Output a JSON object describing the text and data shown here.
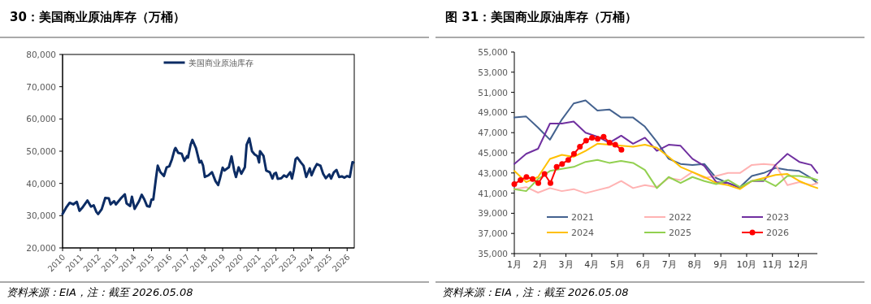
{
  "chart_data": [
    {
      "type": "line",
      "title": "30：美国商业原油库存（万桶）",
      "xlim": [
        2010,
        2026.4
      ],
      "xticks": [
        2010,
        2011,
        2012,
        2013,
        2014,
        2015,
        2016,
        2017,
        2018,
        2019,
        2020,
        2021,
        2022,
        2023,
        2024,
        2025,
        2026
      ],
      "ylim": [
        20000,
        80000
      ],
      "yticks": [
        {
          "value": 20000,
          "label": "20,000"
        },
        {
          "value": 30000,
          "label": "30,000"
        },
        {
          "value": 40000,
          "label": "40,000"
        },
        {
          "value": 50000,
          "label": "50,000"
        },
        {
          "value": 60000,
          "label": "60,000"
        },
        {
          "value": 70000,
          "label": "70,000"
        },
        {
          "value": 80000,
          "label": "80,000"
        }
      ],
      "legend": "top",
      "annotations": [
        "资料来源：EIA，注：截至 2026.05.08"
      ],
      "series": [
        {
          "name": "美国商业原油库存",
          "color": "#0c2c64",
          "x": [
            2010.0,
            2010.2,
            2010.4,
            2010.6,
            2010.8,
            2010.95,
            2011.1,
            2011.4,
            2011.6,
            2011.75,
            2011.9,
            2012.0,
            2012.2,
            2012.4,
            2012.6,
            2012.7,
            2012.9,
            2013.0,
            2013.3,
            2013.5,
            2013.6,
            2013.8,
            2013.9,
            2014.05,
            2014.3,
            2014.45,
            2014.6,
            2014.75,
            2014.9,
            2015.0,
            2015.1,
            2015.25,
            2015.35,
            2015.5,
            2015.7,
            2015.85,
            2016.0,
            2016.15,
            2016.3,
            2016.35,
            2016.5,
            2016.7,
            2016.85,
            2017.0,
            2017.05,
            2017.2,
            2017.3,
            2017.5,
            2017.7,
            2017.8,
            2017.9,
            2018.0,
            2018.2,
            2018.4,
            2018.6,
            2018.75,
            2018.85,
            2019.0,
            2019.1,
            2019.35,
            2019.5,
            2019.65,
            2019.75,
            2019.9,
            2020.05,
            2020.25,
            2020.35,
            2020.5,
            2020.65,
            2020.8,
            2020.95,
            2021.05,
            2021.1,
            2021.3,
            2021.45,
            2021.65,
            2021.8,
            2021.9,
            2022.0,
            2022.1,
            2022.3,
            2022.45,
            2022.6,
            2022.8,
            2022.9,
            2023.0,
            2023.1,
            2023.2,
            2023.4,
            2023.55,
            2023.7,
            2023.9,
            2024.0,
            2024.15,
            2024.3,
            2024.5,
            2024.65,
            2024.8,
            2025.0,
            2025.1,
            2025.25,
            2025.4,
            2025.55,
            2025.7,
            2025.85,
            2026.0,
            2026.15,
            2026.3,
            2026.35
          ],
          "values": [
            30500,
            32500,
            34000,
            33500,
            34300,
            31500,
            32400,
            34700,
            32800,
            33200,
            31200,
            30500,
            32000,
            35500,
            35400,
            33500,
            34500,
            33500,
            35500,
            36600,
            33800,
            33000,
            35900,
            32100,
            34500,
            36500,
            35000,
            33000,
            32800,
            35000,
            35000,
            41500,
            45500,
            43500,
            42300,
            45000,
            45300,
            47500,
            50500,
            51000,
            49500,
            49200,
            47000,
            48500,
            48000,
            52000,
            53500,
            51000,
            46500,
            47000,
            45500,
            42000,
            42500,
            43500,
            40700,
            39500,
            41500,
            44900,
            44000,
            45000,
            48400,
            44000,
            42000,
            45000,
            43000,
            45000,
            52000,
            54000,
            50000,
            49000,
            48500,
            46500,
            50000,
            48500,
            44000,
            43500,
            41500,
            43000,
            43300,
            41400,
            41600,
            42500,
            42000,
            43500,
            41500,
            44000,
            47500,
            48000,
            46500,
            45500,
            42000,
            44700,
            42500,
            44500,
            46000,
            45500,
            43000,
            41600,
            42800,
            41500,
            43400,
            44200,
            42000,
            42200,
            41800,
            42300,
            42000,
            46600,
            46500
          ]
        }
      ]
    },
    {
      "type": "line",
      "title": "图 31：美国商业原油库存（万桶）",
      "x": [
        1,
        1.46,
        1.92,
        2.38,
        2.84,
        3.3,
        3.76,
        4.22,
        4.68,
        5.14,
        5.6,
        6.06,
        6.52,
        6.98,
        7.44,
        7.9,
        8.36,
        8.82,
        9.28,
        9.74,
        10.2,
        10.66,
        11.12,
        11.58,
        12.04,
        12.5,
        12.74
      ],
      "xlim": [
        1,
        12.74
      ],
      "xticks": [
        {
          "value": 1,
          "label": "1月"
        },
        {
          "value": 2,
          "label": "2月"
        },
        {
          "value": 3,
          "label": "3月"
        },
        {
          "value": 4,
          "label": "4月"
        },
        {
          "value": 5,
          "label": "5月"
        },
        {
          "value": 6,
          "label": "6月"
        },
        {
          "value": 7,
          "label": "7月"
        },
        {
          "value": 8,
          "label": "8月"
        },
        {
          "value": 9,
          "label": "9月"
        },
        {
          "value": 10,
          "label": "10月"
        },
        {
          "value": 11,
          "label": "11月"
        },
        {
          "value": 12,
          "label": "12月"
        }
      ],
      "ylim": [
        35000,
        55000
      ],
      "yticks": [
        {
          "value": 35000,
          "label": "35,000"
        },
        {
          "value": 37000,
          "label": "37,000"
        },
        {
          "value": 39000,
          "label": "39,000"
        },
        {
          "value": 41000,
          "label": "41,000"
        },
        {
          "value": 43000,
          "label": "43,000"
        },
        {
          "value": 45000,
          "label": "45,000"
        },
        {
          "value": 47000,
          "label": "47,000"
        },
        {
          "value": 49000,
          "label": "49,000"
        },
        {
          "value": 51000,
          "label": "51,000"
        },
        {
          "value": 53000,
          "label": "53,000"
        },
        {
          "value": 55000,
          "label": "55,000"
        }
      ],
      "legend": "bottom",
      "annotations": [
        "资料来源：EIA，注：截至 2026.05.08"
      ],
      "series": [
        {
          "name": "2021",
          "color": "#44628f",
          "values": [
            48500,
            48600,
            47500,
            46300,
            48300,
            49900,
            50200,
            49200,
            49300,
            48500,
            48500,
            47600,
            46100,
            44400,
            43900,
            43800,
            43900,
            42500,
            42000,
            41600,
            42700,
            43000,
            43500,
            43300,
            43200,
            42500,
            42000
          ]
        },
        {
          "name": "2022",
          "color": "#ffb3b3",
          "values": [
            41400,
            41600,
            41050,
            41500,
            41200,
            41400,
            41000,
            41300,
            41600,
            42200,
            41500,
            41800,
            41600,
            42500,
            42300,
            43100,
            42500,
            42700,
            43000,
            43000,
            43800,
            43900,
            43800,
            41800,
            42100,
            41800,
            42000
          ]
        },
        {
          "name": "2023",
          "color": "#7030a0",
          "values": [
            43900,
            44900,
            45400,
            47900,
            47900,
            48100,
            47000,
            46600,
            46000,
            46700,
            45900,
            46500,
            45200,
            45800,
            45700,
            44400,
            43700,
            42100,
            42000,
            41500,
            42200,
            42200,
            43800,
            44900,
            44100,
            43800,
            43000
          ]
        },
        {
          "name": "2024",
          "color": "#ffc000",
          "values": [
            43200,
            42100,
            42600,
            44400,
            44800,
            44600,
            45200,
            45900,
            45800,
            45700,
            45600,
            45800,
            45500,
            44600,
            43600,
            43100,
            42600,
            42000,
            41800,
            41400,
            42200,
            42500,
            42800,
            42900,
            42200,
            41700,
            41500
          ]
        },
        {
          "name": "2025",
          "color": "#92d050",
          "values": [
            41400,
            41200,
            42400,
            43200,
            43400,
            43600,
            44100,
            44300,
            44000,
            44200,
            44000,
            43300,
            41500,
            42600,
            42000,
            42600,
            42200,
            41900,
            42300,
            41600,
            42200,
            42300,
            41700,
            42700,
            42700,
            42500,
            42300
          ]
        },
        {
          "name": "2026",
          "color": "#ff0000",
          "marker": "circle",
          "x": [
            1,
            1.24,
            1.47,
            1.71,
            1.93,
            2.17,
            2.4,
            2.64,
            2.85,
            3.09,
            3.31,
            3.54,
            3.78,
            4.01,
            4.23,
            4.46,
            4.69,
            4.91,
            5.15
          ],
          "values": [
            41900,
            42300,
            42600,
            42400,
            42000,
            42900,
            42000,
            43600,
            43900,
            44300,
            44900,
            45600,
            46200,
            46500,
            46400,
            46600,
            46000,
            45800,
            45300
          ]
        }
      ]
    }
  ]
}
